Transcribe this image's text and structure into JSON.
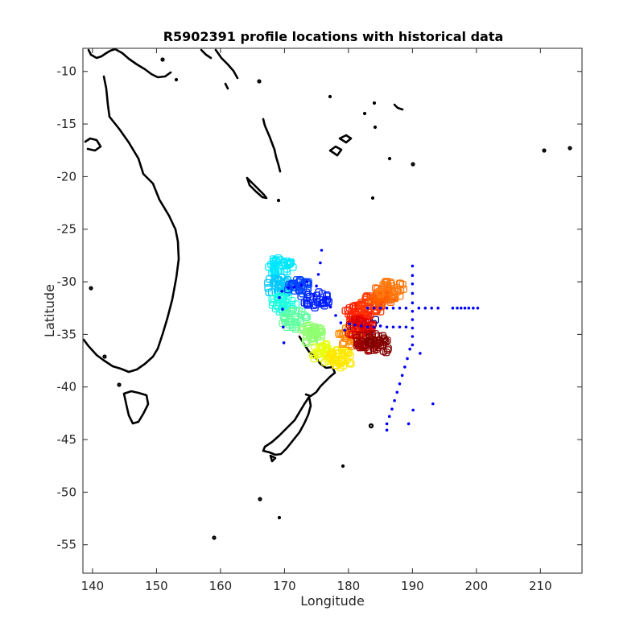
{
  "chart_data": {
    "type": "scatter",
    "title": "R5902391 profile locations with historical data",
    "xlabel": "Longitude",
    "ylabel": "Latitude",
    "xlim": [
      138.5,
      216.5
    ],
    "ylim": [
      -57.7,
      -7.8
    ],
    "xticks": [
      140,
      150,
      160,
      170,
      180,
      190,
      200,
      210
    ],
    "yticks": [
      -10,
      -15,
      -20,
      -25,
      -30,
      -35,
      -40,
      -45,
      -50,
      -55
    ],
    "xtick_labels": [
      "140",
      "150",
      "160",
      "170",
      "180",
      "190",
      "200",
      "210"
    ],
    "ytick_labels": [
      "-10",
      "-15",
      "-20",
      "-25",
      "-30",
      "-35",
      "-40",
      "-45",
      "-50",
      "-55"
    ],
    "grid": false,
    "colors": {
      "historical": "#0000ff",
      "coastline": "#000000",
      "trajectory_colormap": [
        "#00007f",
        "#0000ff",
        "#0080ff",
        "#00ffff",
        "#80ff80",
        "#ffff00",
        "#ff8000",
        "#ff0000",
        "#7f0000"
      ]
    },
    "historical_points": [
      [
        175.8,
        -27.0
      ],
      [
        175.6,
        -28.2
      ],
      [
        175.3,
        -29.3
      ],
      [
        175.0,
        -30.4
      ],
      [
        174.6,
        -31.3
      ],
      [
        173.5,
        -30.0
      ],
      [
        172.6,
        -30.3
      ],
      [
        171.5,
        -30.5
      ],
      [
        170.6,
        -30.6
      ],
      [
        169.6,
        -30.9
      ],
      [
        169.2,
        -31.5
      ],
      [
        169.7,
        -32.6
      ],
      [
        169.8,
        -34.3
      ],
      [
        169.9,
        -35.8
      ],
      [
        176.5,
        -31.5
      ],
      [
        177.2,
        -32.4
      ],
      [
        178.0,
        -33.2
      ],
      [
        178.8,
        -33.9
      ],
      [
        179.4,
        -34.6
      ],
      [
        180.2,
        -34.0
      ],
      [
        181.0,
        -34.1
      ],
      [
        182.0,
        -34.2
      ],
      [
        183.0,
        -34.3
      ],
      [
        184.0,
        -34.3
      ],
      [
        185.0,
        -34.2
      ],
      [
        186.0,
        -34.3
      ],
      [
        187.0,
        -34.3
      ],
      [
        188.0,
        -34.3
      ],
      [
        189.0,
        -34.3
      ],
      [
        190.0,
        -28.5
      ],
      [
        190.0,
        -29.4
      ],
      [
        190.0,
        -30.2
      ],
      [
        190.0,
        -31.1
      ],
      [
        190.0,
        -32.0
      ],
      [
        190.0,
        -32.8
      ],
      [
        190.0,
        -33.6
      ],
      [
        190.0,
        -34.4
      ],
      [
        190.0,
        -35.2
      ],
      [
        190.0,
        -36.0
      ],
      [
        183.0,
        -32.5
      ],
      [
        184.0,
        -32.5
      ],
      [
        185.0,
        -32.5
      ],
      [
        186.0,
        -32.5
      ],
      [
        187.0,
        -32.5
      ],
      [
        188.0,
        -32.5
      ],
      [
        189.0,
        -32.5
      ],
      [
        191.0,
        -32.5
      ],
      [
        192.0,
        -32.5
      ],
      [
        193.0,
        -32.5
      ],
      [
        194.0,
        -32.5
      ],
      [
        196.3,
        -32.5
      ],
      [
        197.0,
        -32.5
      ],
      [
        197.6,
        -32.5
      ],
      [
        198.2,
        -32.5
      ],
      [
        198.8,
        -32.5
      ],
      [
        199.5,
        -32.5
      ],
      [
        200.2,
        -32.5
      ],
      [
        189.6,
        -36.4
      ],
      [
        189.2,
        -37.3
      ],
      [
        188.8,
        -38.1
      ],
      [
        188.4,
        -38.9
      ],
      [
        188.0,
        -39.7
      ],
      [
        187.6,
        -40.5
      ],
      [
        187.2,
        -41.3
      ],
      [
        186.8,
        -42.1
      ],
      [
        186.4,
        -42.8
      ],
      [
        186.0,
        -43.5
      ],
      [
        186.0,
        -44.1
      ],
      [
        189.4,
        -43.5
      ],
      [
        190.1,
        -42.2
      ],
      [
        193.2,
        -41.6
      ],
      [
        191.2,
        -36.8
      ]
    ],
    "profile_clusters": [
      {
        "lon": 169.3,
        "lat": -28.6,
        "color": "#00e8ff",
        "count": 40
      },
      {
        "lon": 169.0,
        "lat": -30.4,
        "color": "#00c8ff",
        "count": 40
      },
      {
        "lon": 169.7,
        "lat": -32.2,
        "color": "#20ffe0",
        "count": 35
      },
      {
        "lon": 171.5,
        "lat": -33.6,
        "color": "#60ffa0",
        "count": 35
      },
      {
        "lon": 174.2,
        "lat": -35.0,
        "color": "#90ff70",
        "count": 40
      },
      {
        "lon": 176.3,
        "lat": -36.8,
        "color": "#e8ff10",
        "count": 35
      },
      {
        "lon": 178.8,
        "lat": -37.3,
        "color": "#ffe800",
        "count": 40
      },
      {
        "lon": 172.5,
        "lat": -30.7,
        "color": "#0040ff",
        "count": 30
      },
      {
        "lon": 175.0,
        "lat": -31.8,
        "color": "#0020ff",
        "count": 30
      },
      {
        "lon": 182.3,
        "lat": -34.0,
        "color": "#00007f",
        "count": 15
      },
      {
        "lon": 180.4,
        "lat": -35.2,
        "color": "#ff8800",
        "count": 30
      },
      {
        "lon": 181.4,
        "lat": -33.0,
        "color": "#ff2000",
        "count": 40
      },
      {
        "lon": 183.6,
        "lat": -32.2,
        "color": "#ff3a00",
        "count": 40
      },
      {
        "lon": 185.3,
        "lat": -31.3,
        "color": "#ff6000",
        "count": 40
      },
      {
        "lon": 186.8,
        "lat": -30.7,
        "color": "#ff7a10",
        "count": 30
      },
      {
        "lon": 181.8,
        "lat": -34.4,
        "color": "#e00000",
        "count": 40
      },
      {
        "lon": 183.2,
        "lat": -35.7,
        "color": "#a00000",
        "count": 40
      },
      {
        "lon": 184.6,
        "lat": -36.0,
        "color": "#800000",
        "count": 25
      }
    ]
  }
}
